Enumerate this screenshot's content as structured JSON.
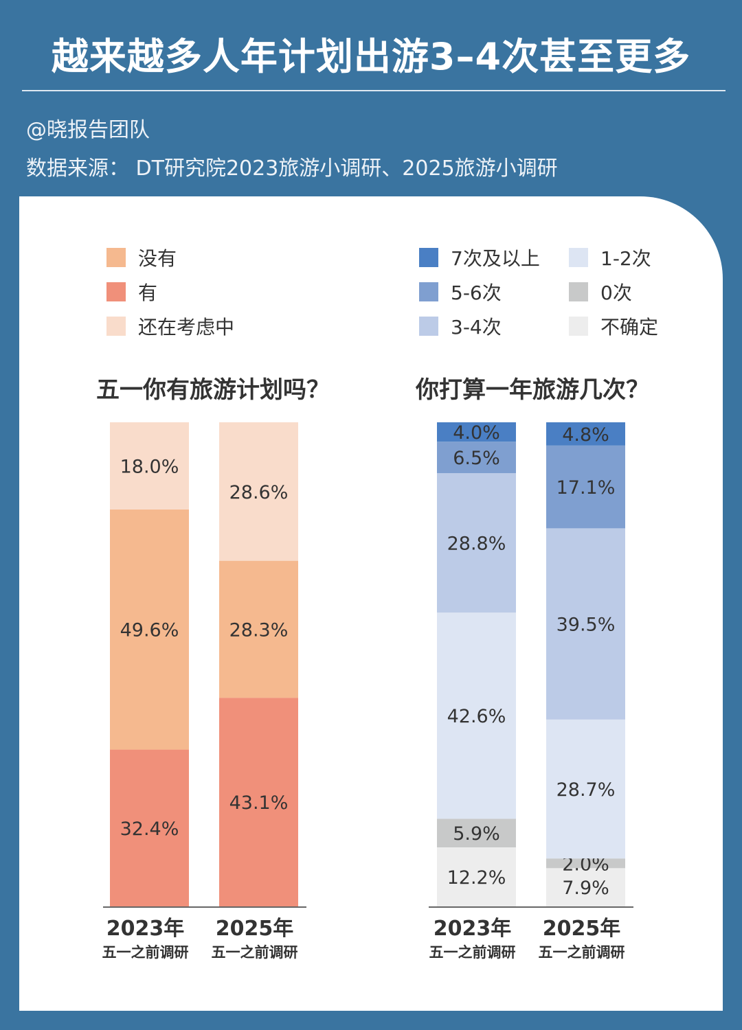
{
  "header": {
    "title": "越来越多人年计划出游3–4次甚至更多",
    "author": "@晓报告团队",
    "source": "数据来源： DT研究院2023旅游小调研、2025旅游小调研"
  },
  "colors": {
    "background": "#3a74a0",
    "panel": "#ffffff"
  },
  "chart_data": [
    {
      "type": "bar",
      "stacked": true,
      "title": "五一你有旅游计划吗？",
      "categories": [
        [
          "2023年",
          "五一之前调研"
        ],
        [
          "2025年",
          "五一之前调研"
        ]
      ],
      "unit": "%",
      "series": [
        {
          "name": "有",
          "color": "#f0907a",
          "values": [
            32.4,
            43.1
          ]
        },
        {
          "name": "没有",
          "color": "#f5b98f",
          "values": [
            49.6,
            28.3
          ]
        },
        {
          "name": "还在考虑中",
          "color": "#f9dccb",
          "values": [
            18.0,
            28.6
          ]
        }
      ],
      "legend_order": [
        "没有",
        "有",
        "还在考虑中"
      ],
      "legend_placement": "top-left",
      "ylim": [
        0,
        100
      ],
      "grid": false
    },
    {
      "type": "bar",
      "stacked": true,
      "title": "你打算一年旅游几次？",
      "categories": [
        [
          "2023年",
          "五一之前调研"
        ],
        [
          "2025年",
          "五一之前调研"
        ]
      ],
      "unit": "%",
      "series": [
        {
          "name": "不确定",
          "color": "#ededed",
          "values": [
            12.2,
            7.9
          ]
        },
        {
          "name": "0次",
          "color": "#c8c9c9",
          "values": [
            5.9,
            2.0
          ]
        },
        {
          "name": "1-2次",
          "color": "#dde5f3",
          "values": [
            42.6,
            28.7
          ]
        },
        {
          "name": "3-4次",
          "color": "#bccbe7",
          "values": [
            28.8,
            39.5
          ]
        },
        {
          "name": "5-6次",
          "color": "#7f9fd0",
          "values": [
            6.5,
            17.1
          ]
        },
        {
          "name": "7次及以上",
          "color": "#4a7fc4",
          "values": [
            4.0,
            4.8
          ]
        }
      ],
      "legend_order": [
        "7次及以上",
        "5-6次",
        "3-4次",
        "1-2次",
        "0次",
        "不确定"
      ],
      "legend_placement": "top-right",
      "ylim": [
        0,
        100
      ],
      "grid": false
    }
  ]
}
